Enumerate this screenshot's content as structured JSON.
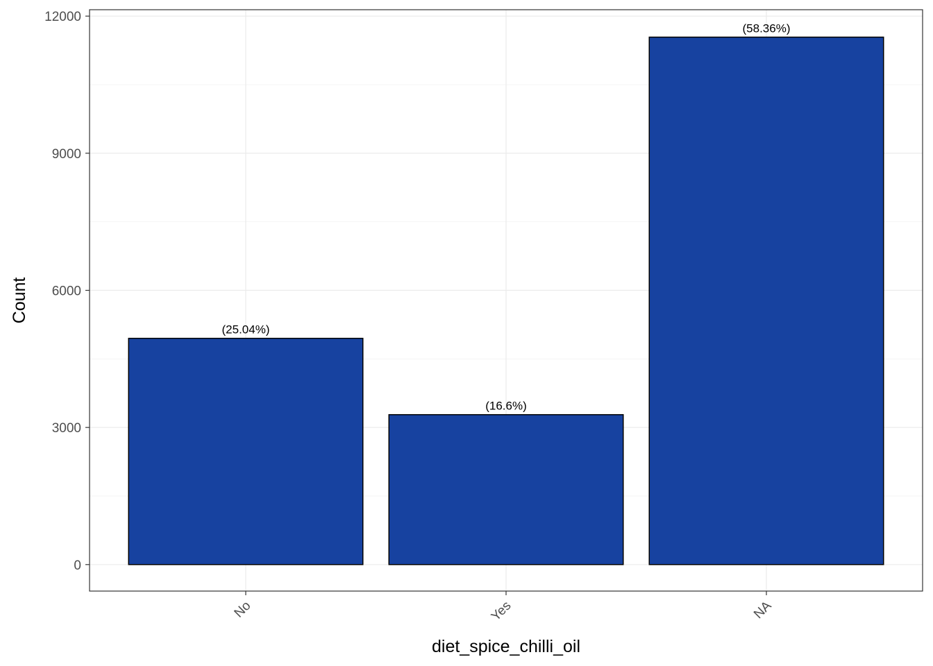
{
  "chart_data": {
    "type": "bar",
    "title": "",
    "xlabel": "diet_spice_chilli_oil",
    "ylabel": "Count",
    "categories": [
      "No",
      "Yes",
      "NA"
    ],
    "values": [
      4950,
      3280,
      11540
    ],
    "labels": [
      "(25.04%)",
      "(16.6%)",
      "(58.36%)"
    ],
    "ylim": [
      -580,
      12140
    ],
    "yticks": [
      0,
      3000,
      6000,
      9000,
      12000
    ],
    "grid": true,
    "legend": "none",
    "colors": {
      "bar_fill": "#1742A0",
      "bar_stroke": "#000000",
      "grid_major": "#EBEBEB",
      "grid_minor": "#F5F5F5",
      "panel_border": "#333333",
      "tick_text": "#4D4D4D",
      "axis_title": "#000000"
    }
  }
}
